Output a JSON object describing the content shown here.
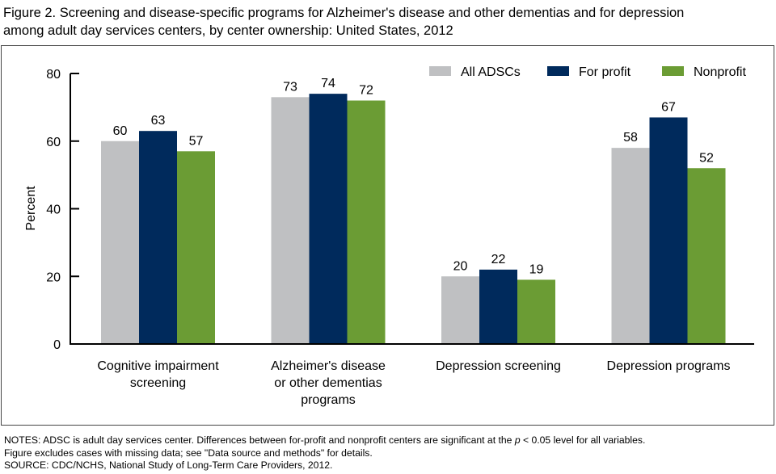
{
  "title_line1": "Figure 2. Screening and disease-specific programs for Alzheimer's disease and other dementias and for depression",
  "title_line2": "among adult day services centers, by center ownership: United States, 2012",
  "notes": {
    "line1_pre": "NOTES: ADSC is adult day services center. Differences between for-profit and nonprofit centers are significant at the ",
    "line1_p": "p",
    "line1_post": " < 0.05 level for all variables.",
    "line2": "Figure excludes cases with missing data; see \"Data source and methods\" for details.",
    "line3": "SOURCE: CDC/NCHS, National  Study of Long-Term Care Providers, 2012."
  },
  "chart_data": {
    "type": "bar",
    "title": "Screening and disease-specific programs for Alzheimer's disease and other dementias and for depression among adult day services centers, by center ownership: United States, 2012",
    "xlabel": "",
    "ylabel": "Percent",
    "ylim": [
      0,
      80
    ],
    "yticks": [
      0,
      20,
      40,
      60,
      80
    ],
    "grid": false,
    "legend_position": "top-right",
    "categories": [
      [
        "Cognitive impairment",
        "screening"
      ],
      [
        "Alzheimer's disease",
        "or other dementias",
        "programs"
      ],
      [
        "Depression screening"
      ],
      [
        "Depression programs"
      ]
    ],
    "series": [
      {
        "name": "All ADSCs",
        "color": "#bfc0c2",
        "values": [
          60,
          73,
          20,
          58
        ]
      },
      {
        "name": "For profit",
        "color": "#002a5c",
        "values": [
          63,
          74,
          22,
          67
        ]
      },
      {
        "name": "Nonprofit",
        "color": "#6b9c34",
        "values": [
          57,
          72,
          19,
          52
        ]
      }
    ]
  }
}
